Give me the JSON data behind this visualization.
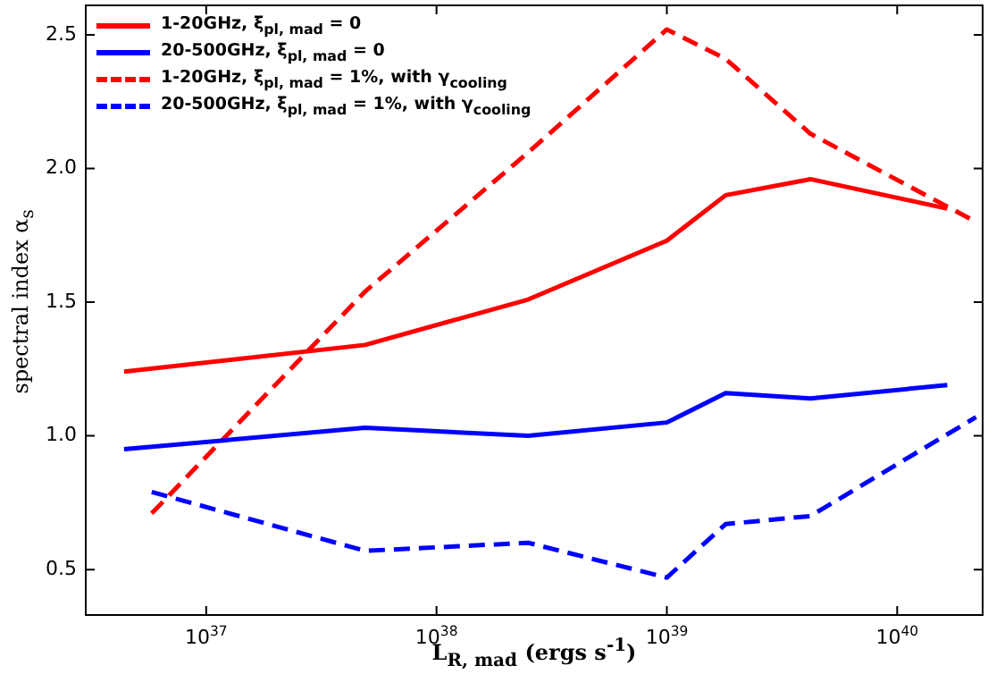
{
  "chart_data": {
    "type": "line",
    "xlabel": "L$_{R, mad}$ (ergs s$^{-1}$)",
    "ylabel": "spectral index α$_{s}$",
    "log": "x",
    "xlim": [
      3e+36,
      2.35e+40
    ],
    "ylim": [
      0.33,
      2.61
    ],
    "xticks": [
      {
        "value": 1e+37,
        "label": "10$^{37}$"
      },
      {
        "value": 1e+38,
        "label": "10$^{38}$"
      },
      {
        "value": 1e+39,
        "label": "10$^{39}$"
      },
      {
        "value": 1e+40,
        "label": "10$^{40}$"
      }
    ],
    "yticks": [
      {
        "value": 0.5,
        "label": "0.5"
      },
      {
        "value": 1,
        "label": "1.0"
      },
      {
        "value": 1.5,
        "label": "1.5"
      },
      {
        "value": 2,
        "label": "2.0"
      },
      {
        "value": 2.5,
        "label": "2.5"
      }
    ],
    "grid": false,
    "legend": "top left",
    "marker": "none",
    "series": [
      {
        "name": "1-20GHz, ξ$_{pl, mad}$ = 0",
        "color": "#ff0000",
        "line_style": "solid",
        "x": [
          4.4e+36,
          4.9e+37,
          2.5e+38,
          1e+39,
          1.8e+39,
          4.2e+39,
          1.65e+40
        ],
        "values": [
          1.24,
          1.34,
          1.51,
          1.73,
          1.9,
          1.96,
          1.85
        ]
      },
      {
        "name": "20-500GHz, ξ$_{pl, mad}$ = 0",
        "color": "#0000ff",
        "line_style": "solid",
        "x": [
          4.4e+36,
          4.9e+37,
          2.5e+38,
          1e+39,
          1.8e+39,
          4.2e+39,
          1.65e+40
        ],
        "values": [
          0.95,
          1.03,
          1.0,
          1.05,
          1.16,
          1.14,
          1.19
        ]
      },
      {
        "name": "1-20GHz, ξ$_{pl, mad}$ = 1%, with γ$_{cooling}$",
        "color": "#ff0000",
        "line_style": "dashed",
        "x": [
          5.8e+36,
          4.9e+37,
          2.5e+38,
          1e+39,
          1.8e+39,
          4.2e+39,
          2.2e+40
        ],
        "values": [
          0.71,
          1.54,
          2.06,
          2.52,
          2.41,
          2.13,
          1.8
        ]
      },
      {
        "name": "20-500GHz, ξ$_{pl, mad}$ = 1%, with γ$_{cooling}$",
        "color": "#0000ff",
        "line_style": "dashed",
        "x": [
          5.8e+36,
          4.9e+37,
          2.5e+38,
          1e+39,
          1.8e+39,
          4.2e+39,
          2.2e+40
        ],
        "values": [
          0.79,
          0.57,
          0.6,
          0.47,
          0.67,
          0.7,
          1.07
        ]
      }
    ]
  }
}
